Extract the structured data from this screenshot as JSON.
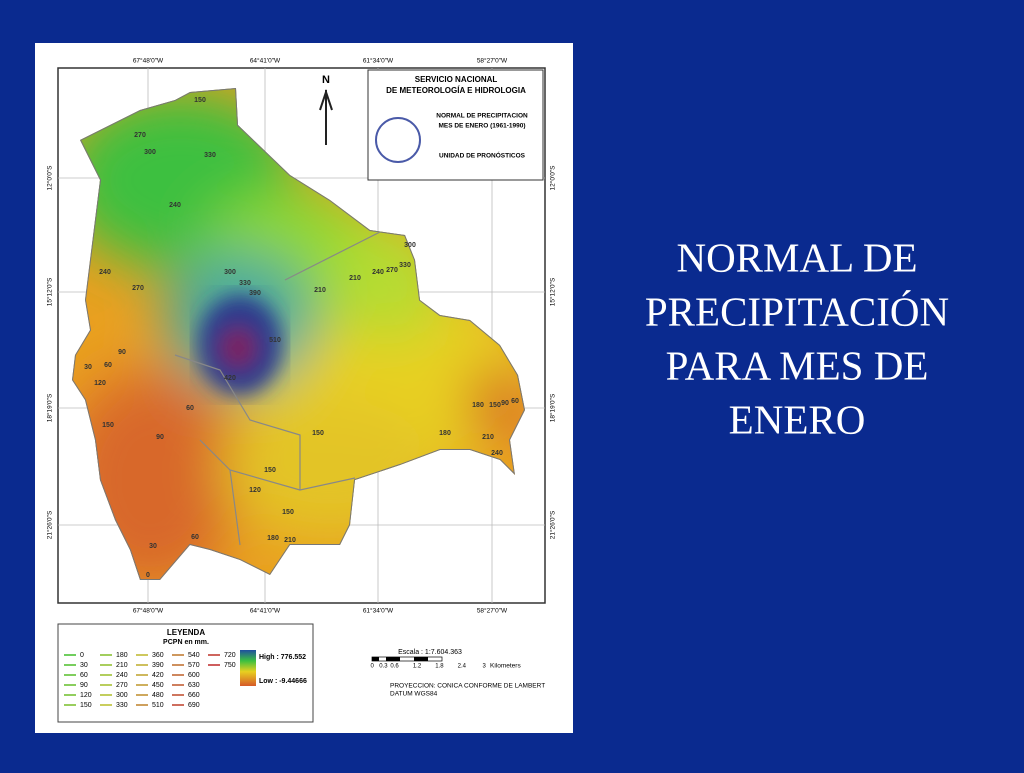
{
  "slide": {
    "title_lines": [
      "NORMAL DE",
      "PRECIPITACIÓN",
      "PARA MES DE",
      "ENERO"
    ]
  },
  "map": {
    "header": {
      "org": [
        "SERVICIO NACIONAL",
        "DE METEOROLOGÍA E HIDROLOGIA"
      ],
      "subtitle": [
        "NORMAL DE PRECIPITACION",
        "MES DE ENERO (1961-1990)"
      ],
      "unit": "UNIDAD DE PRONÓSTICOS"
    },
    "north": "N",
    "lon_labels": [
      "67°48'0\"W",
      "64°41'0\"W",
      "61°34'0\"W",
      "58°27'0\"W"
    ],
    "lat_labels": [
      "12°0'0\"S",
      "15°12'0\"S",
      "18°19'0\"S",
      "21°26'0\"S"
    ],
    "legend": {
      "title": "LEYENDA",
      "subtitle": "PCPN en mm.",
      "classes": [
        0,
        30,
        60,
        90,
        120,
        150,
        180,
        210,
        240,
        270,
        300,
        330,
        360,
        390,
        420,
        450,
        480,
        510,
        540,
        570,
        600,
        630,
        660,
        690,
        720,
        750
      ],
      "high": "High : 776.552",
      "low": "Low : -9.44666"
    },
    "scale": {
      "label": "Escala : 1:7.604.363",
      "ticks": [
        "0",
        "0.3",
        "0.6",
        "1.2",
        "1.8",
        "2.4",
        "3"
      ],
      "unit": "Kilometers"
    },
    "projection": [
      "PROYECCION: CONICA CONFORME DE LAMBERT",
      "DATUM        WGS84"
    ],
    "contour_labels": [
      150,
      270,
      300,
      330,
      240,
      240,
      270,
      120,
      90,
      60,
      30,
      60,
      90,
      150,
      300,
      330,
      390,
      210,
      210,
      240,
      270,
      330,
      300,
      180,
      150,
      90,
      60,
      210,
      240,
      150,
      180,
      150,
      120,
      150,
      180,
      210,
      30,
      0,
      60,
      420,
      510
    ]
  }
}
